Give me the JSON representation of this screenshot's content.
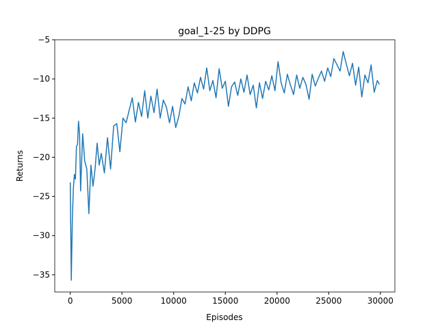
{
  "chart_data": {
    "type": "line",
    "title": "goal_1-25 by DDPG",
    "xlabel": "Episodes",
    "ylabel": "Returns",
    "x": [
      0,
      100,
      200,
      300,
      400,
      500,
      600,
      700,
      800,
      900,
      1000,
      1200,
      1400,
      1600,
      1800,
      2000,
      2200,
      2400,
      2600,
      2800,
      3000,
      3300,
      3600,
      3900,
      4200,
      4500,
      4800,
      5100,
      5400,
      5700,
      6000,
      6300,
      6600,
      6900,
      7200,
      7500,
      7800,
      8100,
      8400,
      8700,
      9000,
      9300,
      9600,
      9900,
      10200,
      10500,
      10800,
      11100,
      11400,
      11700,
      12000,
      12300,
      12600,
      12900,
      13200,
      13500,
      13800,
      14100,
      14400,
      14700,
      15000,
      15300,
      15600,
      15900,
      16200,
      16500,
      16800,
      17100,
      17400,
      17700,
      18000,
      18300,
      18600,
      18900,
      19200,
      19500,
      19800,
      20100,
      20400,
      20700,
      21000,
      21300,
      21600,
      21900,
      22200,
      22500,
      22800,
      23100,
      23400,
      23700,
      24000,
      24300,
      24600,
      24900,
      25200,
      25500,
      25800,
      26100,
      26400,
      26700,
      27000,
      27300,
      27600,
      27900,
      28200,
      28500,
      28800,
      29100,
      29400,
      29700,
      29900
    ],
    "series": [
      {
        "name": "Returns",
        "color": "#1f77b4",
        "values": [
          -23.2,
          -35.7,
          -28,
          -24,
          -22.2,
          -22.8,
          -18.6,
          -18.4,
          -15.4,
          -17,
          -24.3,
          -17,
          -20.5,
          -21.5,
          -27.2,
          -21,
          -23.7,
          -21.5,
          -18.2,
          -21,
          -19.5,
          -22,
          -17.5,
          -21.5,
          -16,
          -15.7,
          -19.3,
          -15,
          -15.6,
          -14,
          -12.4,
          -15.5,
          -13,
          -14.8,
          -11.5,
          -15,
          -12.2,
          -14.3,
          -11.3,
          -15,
          -12.7,
          -13.6,
          -15.6,
          -13.5,
          -16.2,
          -14.8,
          -12.5,
          -13.2,
          -11,
          -12.8,
          -10.5,
          -11.8,
          -9.8,
          -11.3,
          -8.6,
          -11.5,
          -10.2,
          -12.4,
          -8.7,
          -11.2,
          -10.3,
          -13.5,
          -11,
          -10.4,
          -12.1,
          -10,
          -11.7,
          -9.5,
          -12,
          -10.8,
          -13.7,
          -10.5,
          -12.5,
          -10.3,
          -11.4,
          -9.6,
          -11.5,
          -7.8,
          -10.5,
          -11.8,
          -9.4,
          -10.8,
          -12,
          -9.5,
          -11.2,
          -9.8,
          -10.7,
          -12.6,
          -9.4,
          -10.9,
          -9.9,
          -9.0,
          -10.3,
          -8.6,
          -9.7,
          -7.4,
          -8.2,
          -9,
          -6.5,
          -8.1,
          -9.6,
          -8,
          -10.8,
          -8.5,
          -12.3,
          -9.5,
          -10.5,
          -8.2,
          -11.7,
          -10.2,
          -10.7
        ]
      }
    ],
    "xlim": [
      -1500,
      31400
    ],
    "ylim": [
      -37.2,
      -5
    ],
    "xticks": [
      0,
      5000,
      10000,
      15000,
      20000,
      25000,
      30000
    ],
    "yticks": [
      {
        "value": -35,
        "label": "−35"
      },
      {
        "value": -30,
        "label": "−30"
      },
      {
        "value": -25,
        "label": "−25"
      },
      {
        "value": -20,
        "label": "−20"
      },
      {
        "value": -15,
        "label": "−15"
      },
      {
        "value": -10,
        "label": "−10"
      },
      {
        "value": -5,
        "label": "−5"
      }
    ]
  }
}
